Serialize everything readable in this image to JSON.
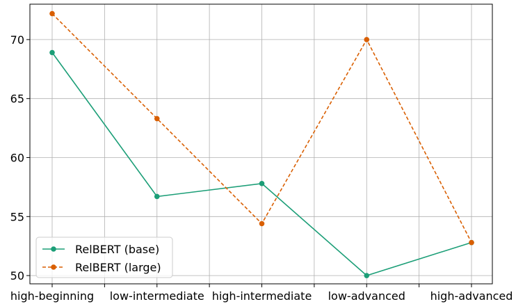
{
  "chart_data": {
    "type": "line",
    "title": "",
    "xlabel": "",
    "ylabel": "",
    "categories": [
      "high-beginning",
      "low-intermediate",
      "high-intermediate",
      "low-advanced",
      "high-advanced"
    ],
    "ylim": [
      49.3,
      73.0
    ],
    "yticks": [
      50,
      55,
      60,
      65,
      70
    ],
    "grid": true,
    "legend_position": "lower-left",
    "series": [
      {
        "name": "RelBERT (base)",
        "values": [
          68.9,
          56.7,
          57.8,
          50.0,
          52.8
        ],
        "color": "#1b9e77",
        "linestyle": "solid",
        "marker": "circle"
      },
      {
        "name": "RelBERT (large)",
        "values": [
          72.2,
          63.3,
          54.4,
          70.0,
          52.8
        ],
        "color": "#d95f02",
        "linestyle": "dashed",
        "marker": "circle"
      }
    ]
  }
}
